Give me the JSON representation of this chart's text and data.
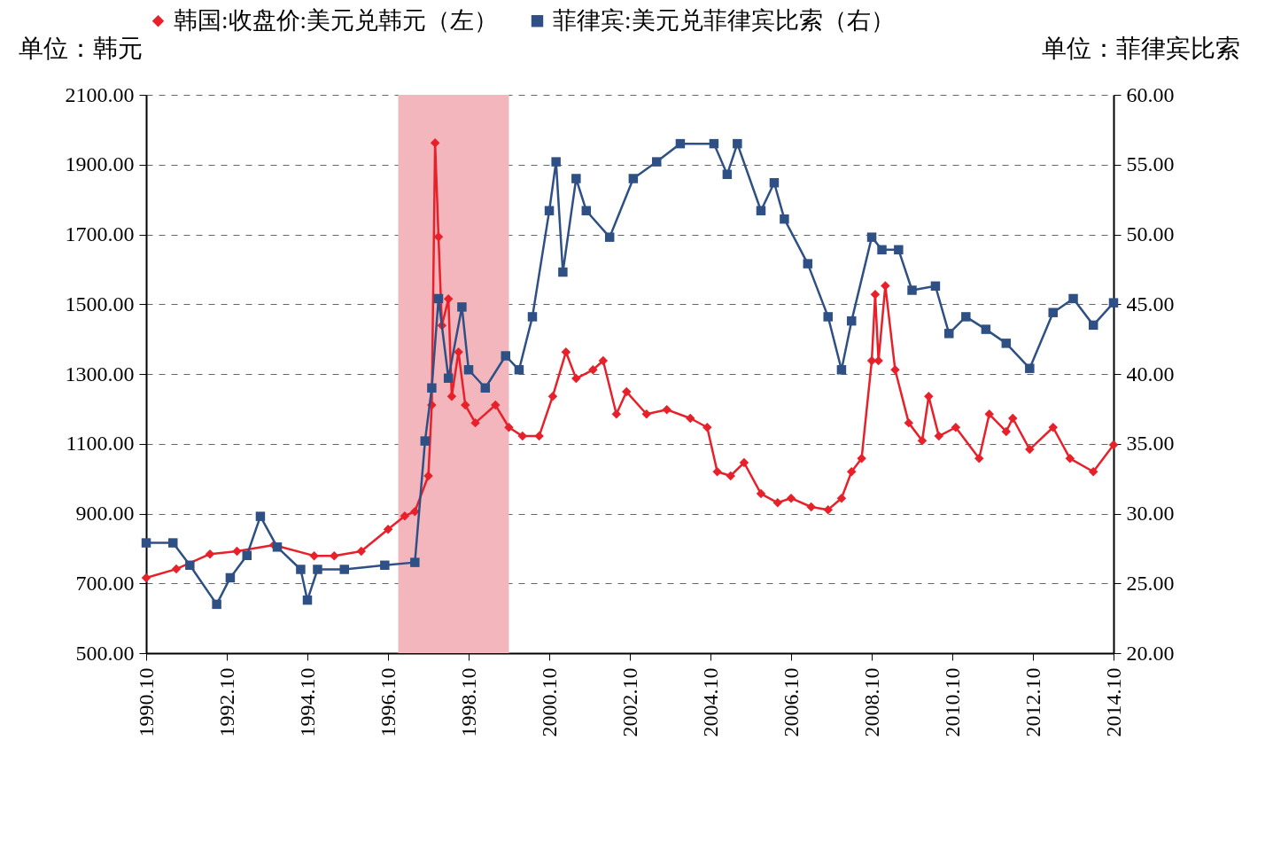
{
  "chart_data": {
    "type": "line",
    "ylabel": "单位：韩元",
    "y2label": "单位：菲律宾比索",
    "legend": "top",
    "grid": "y",
    "xlim": [
      "1990-10",
      "2014-10"
    ],
    "xticks": [
      {
        "value": "1990-10",
        "label": "1990.10"
      },
      {
        "value": "1992-10",
        "label": "1992.10"
      },
      {
        "value": "1994-10",
        "label": "1994.10"
      },
      {
        "value": "1996-10",
        "label": "1996.10"
      },
      {
        "value": "1998-10",
        "label": "1998.10"
      },
      {
        "value": "2000-10",
        "label": "2000.10"
      },
      {
        "value": "2002-10",
        "label": "2002.10"
      },
      {
        "value": "2004-10",
        "label": "2004.10"
      },
      {
        "value": "2006-10",
        "label": "2006.10"
      },
      {
        "value": "2008-10",
        "label": "2008.10"
      },
      {
        "value": "2010-10",
        "label": "2010.10"
      },
      {
        "value": "2012-10",
        "label": "2012.10"
      },
      {
        "value": "2014-10",
        "label": "2014.10"
      }
    ],
    "ylim": [
      500,
      2100
    ],
    "yticks": [
      {
        "value": 500,
        "label": "500.00"
      },
      {
        "value": 700,
        "label": "700.00"
      },
      {
        "value": 900,
        "label": "900.00"
      },
      {
        "value": 1100,
        "label": "1100.00"
      },
      {
        "value": 1300,
        "label": "1300.00"
      },
      {
        "value": 1500,
        "label": "1500.00"
      },
      {
        "value": 1700,
        "label": "1700.00"
      },
      {
        "value": 1900,
        "label": "1900.00"
      },
      {
        "value": 2100,
        "label": "2100.00"
      }
    ],
    "y2lim": [
      20,
      60
    ],
    "y2ticks": [
      {
        "value": 20,
        "label": "20.00"
      },
      {
        "value": 25,
        "label": "25.00"
      },
      {
        "value": 30,
        "label": "30.00"
      },
      {
        "value": 35,
        "label": "35.00"
      },
      {
        "value": 40,
        "label": "40.00"
      },
      {
        "value": 45,
        "label": "45.00"
      },
      {
        "value": 50,
        "label": "50.00"
      },
      {
        "value": 55,
        "label": "55.00"
      },
      {
        "value": 60,
        "label": "60.00"
      }
    ],
    "bands": [
      {
        "axis": "x",
        "from": "1997-01",
        "to": "1999-10",
        "color": "#f4b6bd"
      }
    ],
    "series": [
      {
        "name": "韩国:收盘价:美元兑韩元（左）",
        "color": "#e8202a",
        "marker": "diamond",
        "x": [
          "1990-10",
          "1991-07",
          "1992-05",
          "1993-01",
          "1993-12",
          "1994-12",
          "1995-06",
          "1996-02",
          "1996-10",
          "1997-03",
          "1997-06",
          "1997-10",
          "1997-11",
          "1997-12",
          "1998-01",
          "1998-02",
          "1998-04",
          "1998-05",
          "1998-07",
          "1998-09",
          "1998-12",
          "1999-06",
          "1999-10",
          "2000-02",
          "2000-07",
          "2000-11",
          "2001-03",
          "2001-06",
          "2001-11",
          "2002-02",
          "2002-06",
          "2002-09",
          "2003-03",
          "2003-09",
          "2004-04",
          "2004-09",
          "2004-12",
          "2005-04",
          "2005-08",
          "2006-01",
          "2006-06",
          "2006-10",
          "2007-04",
          "2007-09",
          "2008-01",
          "2008-04",
          "2008-07",
          "2008-10",
          "2008-11",
          "2008-12",
          "2009-02",
          "2009-05",
          "2009-09",
          "2010-01",
          "2010-03",
          "2010-06",
          "2010-11",
          "2011-06",
          "2011-09",
          "2012-02",
          "2012-04",
          "2012-09",
          "2013-04",
          "2013-09",
          "2014-04",
          "2014-10"
        ],
        "values": [
          716,
          741,
          784,
          792,
          810,
          779,
          779,
          792,
          855,
          893,
          906,
          1008,
          1211,
          1962,
          1693,
          1439,
          1515,
          1236,
          1363,
          1211,
          1160,
          1211,
          1147,
          1122,
          1122,
          1236,
          1363,
          1287,
          1312,
          1338,
          1185,
          1249,
          1185,
          1198,
          1173,
          1147,
          1020,
          1008,
          1046,
          957,
          931,
          944,
          919,
          911,
          944,
          1020,
          1058,
          1338,
          1528,
          1338,
          1553,
          1312,
          1160,
          1109,
          1236,
          1122,
          1147,
          1058,
          1185,
          1135,
          1173,
          1084,
          1147,
          1058,
          1020,
          1097
        ]
      },
      {
        "name": "菲律宾:美元兑菲律宾比索（右）",
        "color": "#2e5085",
        "marker": "square",
        "axis": "y2",
        "x": [
          "1990-10",
          "1991-06",
          "1991-11",
          "1992-07",
          "1992-11",
          "1993-04",
          "1993-08",
          "1994-01",
          "1994-08",
          "1994-10",
          "1995-01",
          "1995-09",
          "1996-09",
          "1997-06",
          "1997-09",
          "1997-11",
          "1998-01",
          "1998-04",
          "1998-08",
          "1998-10",
          "1999-03",
          "1999-09",
          "2000-01",
          "2000-05",
          "2000-10",
          "2000-12",
          "2001-02",
          "2001-06",
          "2001-09",
          "2002-04",
          "2002-11",
          "2003-06",
          "2004-01",
          "2004-11",
          "2005-03",
          "2005-06",
          "2006-01",
          "2006-05",
          "2006-08",
          "2007-03",
          "2007-09",
          "2008-01",
          "2008-04",
          "2008-10",
          "2009-01",
          "2009-06",
          "2009-10",
          "2010-05",
          "2010-09",
          "2011-02",
          "2011-08",
          "2012-02",
          "2012-09",
          "2013-04",
          "2013-10",
          "2014-04",
          "2014-10"
        ],
        "values": [
          27.9,
          27.9,
          26.3,
          23.5,
          25.4,
          27.0,
          29.8,
          27.6,
          26.0,
          23.8,
          26.0,
          26.0,
          26.3,
          26.5,
          35.2,
          39.0,
          45.4,
          39.7,
          44.8,
          40.3,
          39.0,
          41.3,
          40.3,
          44.1,
          51.7,
          55.2,
          47.3,
          54.0,
          51.7,
          49.8,
          54.0,
          55.2,
          56.5,
          56.5,
          54.3,
          56.5,
          51.7,
          53.7,
          51.1,
          47.9,
          44.1,
          40.3,
          43.8,
          49.8,
          48.9,
          48.9,
          46.0,
          46.3,
          42.9,
          44.1,
          43.2,
          42.2,
          40.4,
          44.4,
          45.4,
          43.5,
          45.1
        ]
      }
    ]
  }
}
